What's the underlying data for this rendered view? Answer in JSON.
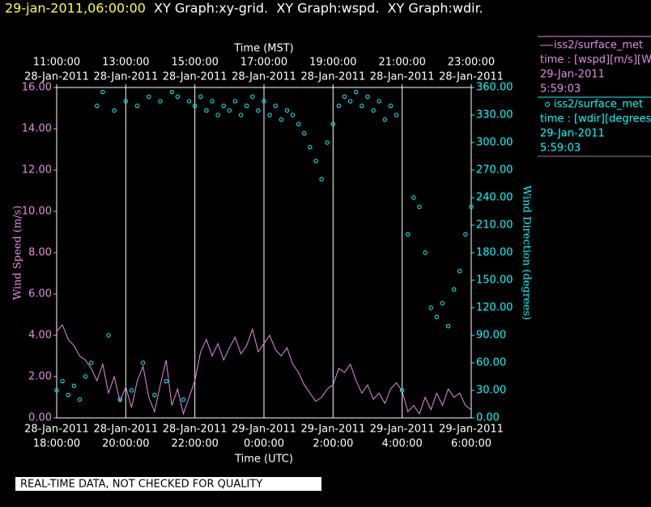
{
  "header": {
    "stamp": "29-jan-2011,06:00:00",
    "title": "XY Graph:xy-grid.  XY Graph:wspd.  XY Graph:wdir."
  },
  "footer": "REAL-TIME DATA, NOT CHECKED FOR QUALITY",
  "legend": [
    {
      "line1": "time : [wspd][m/s][Wind",
      "date": "29-Jan-2011",
      "time": "5:59:03"
    },
    {
      "line1": "time : [wdir][degrees][V",
      "date": "29-Jan-2011",
      "time": "5:59:03"
    }
  ],
  "chart_data": {
    "type": "line",
    "x_label": "Time (UTC)",
    "x2_label": "Time (MST)",
    "y_label": "Wind Speed (m/s)",
    "y2_label": "Wind Direction (degrees)",
    "xlim": [
      "2011-01-28T18:00",
      "2011-01-29T06:00"
    ],
    "xticks": [
      {
        "value": "2011-01-28T18:00",
        "label": [
          "28-Jan-2011",
          "18:00:00"
        ]
      },
      {
        "value": "2011-01-28T20:00",
        "label": [
          "28-Jan-2011",
          "20:00:00"
        ]
      },
      {
        "value": "2011-01-28T22:00",
        "label": [
          "28-Jan-2011",
          "22:00:00"
        ]
      },
      {
        "value": "2011-01-29T00:00",
        "label": [
          "29-Jan-2011",
          "0:00:00"
        ]
      },
      {
        "value": "2011-01-29T02:00",
        "label": [
          "29-Jan-2011",
          "2:00:00"
        ]
      },
      {
        "value": "2011-01-29T04:00",
        "label": [
          "29-Jan-2011",
          "4:00:00"
        ]
      },
      {
        "value": "2011-01-29T06:00",
        "label": [
          "29-Jan-2011",
          "6:00:00"
        ]
      }
    ],
    "x2ticks": [
      {
        "value": "2011-01-28T18:00",
        "label": [
          "11:00:00",
          "28-Jan-2011"
        ]
      },
      {
        "value": "2011-01-28T20:00",
        "label": [
          "13:00:00",
          "28-Jan-2011"
        ]
      },
      {
        "value": "2011-01-28T22:00",
        "label": [
          "15:00:00",
          "28-Jan-2011"
        ]
      },
      {
        "value": "2011-01-29T00:00",
        "label": [
          "17:00:00",
          "28-Jan-2011"
        ]
      },
      {
        "value": "2011-01-29T02:00",
        "label": [
          "19:00:00",
          "28-Jan-2011"
        ]
      },
      {
        "value": "2011-01-29T04:00",
        "label": [
          "21:00:00",
          "28-Jan-2011"
        ]
      },
      {
        "value": "2011-01-29T06:00",
        "label": [
          "23:00:00",
          "28-Jan-2011"
        ]
      }
    ],
    "ylim": [
      0,
      16
    ],
    "yticks": [
      {
        "value": 0,
        "label": "0.00"
      },
      {
        "value": 2,
        "label": "2.00"
      },
      {
        "value": 4,
        "label": "4.00"
      },
      {
        "value": 6,
        "label": "6.00"
      },
      {
        "value": 8,
        "label": "8.00"
      },
      {
        "value": 10,
        "label": "10.00"
      },
      {
        "value": 12,
        "label": "12.00"
      },
      {
        "value": 14,
        "label": "14.00"
      },
      {
        "value": 16,
        "label": "16.00"
      }
    ],
    "y2lim": [
      0,
      360
    ],
    "y2ticks": [
      {
        "value": 0,
        "label": "0.00"
      },
      {
        "value": 30,
        "label": "30.00"
      },
      {
        "value": 60,
        "label": "60.00"
      },
      {
        "value": 90,
        "label": "90.00"
      },
      {
        "value": 120,
        "label": "120.00"
      },
      {
        "value": 150,
        "label": "150.00"
      },
      {
        "value": 180,
        "label": "180.00"
      },
      {
        "value": 210,
        "label": "210.00"
      },
      {
        "value": 240,
        "label": "240.00"
      },
      {
        "value": 270,
        "label": "270.00"
      },
      {
        "value": 300,
        "label": "300.00"
      },
      {
        "value": 330,
        "label": "330.00"
      },
      {
        "value": 360,
        "label": "360.00"
      }
    ],
    "grid": true,
    "x": [
      "2011-01-28T18:00",
      "2011-01-28T18:10",
      "2011-01-28T18:20",
      "2011-01-28T18:30",
      "2011-01-28T18:40",
      "2011-01-28T18:50",
      "2011-01-28T19:00",
      "2011-01-28T19:10",
      "2011-01-28T19:20",
      "2011-01-28T19:30",
      "2011-01-28T19:40",
      "2011-01-28T19:50",
      "2011-01-28T20:00",
      "2011-01-28T20:10",
      "2011-01-28T20:20",
      "2011-01-28T20:30",
      "2011-01-28T20:40",
      "2011-01-28T20:50",
      "2011-01-28T21:00",
      "2011-01-28T21:10",
      "2011-01-28T21:20",
      "2011-01-28T21:30",
      "2011-01-28T21:40",
      "2011-01-28T21:50",
      "2011-01-28T22:00",
      "2011-01-28T22:10",
      "2011-01-28T22:20",
      "2011-01-28T22:30",
      "2011-01-28T22:40",
      "2011-01-28T22:50",
      "2011-01-28T23:00",
      "2011-01-28T23:10",
      "2011-01-28T23:20",
      "2011-01-28T23:30",
      "2011-01-28T23:40",
      "2011-01-28T23:50",
      "2011-01-29T00:00",
      "2011-01-29T00:10",
      "2011-01-29T00:20",
      "2011-01-29T00:30",
      "2011-01-29T00:40",
      "2011-01-29T00:50",
      "2011-01-29T01:00",
      "2011-01-29T01:10",
      "2011-01-29T01:20",
      "2011-01-29T01:30",
      "2011-01-29T01:40",
      "2011-01-29T01:50",
      "2011-01-29T02:00",
      "2011-01-29T02:10",
      "2011-01-29T02:20",
      "2011-01-29T02:30",
      "2011-01-29T02:40",
      "2011-01-29T02:50",
      "2011-01-29T03:00",
      "2011-01-29T03:10",
      "2011-01-29T03:20",
      "2011-01-29T03:30",
      "2011-01-29T03:40",
      "2011-01-29T03:50",
      "2011-01-29T04:00",
      "2011-01-29T04:10",
      "2011-01-29T04:20",
      "2011-01-29T04:30",
      "2011-01-29T04:40",
      "2011-01-29T04:50",
      "2011-01-29T05:00",
      "2011-01-29T05:10",
      "2011-01-29T05:20",
      "2011-01-29T05:30",
      "2011-01-29T05:40",
      "2011-01-29T05:50",
      "2011-01-29T06:00"
    ],
    "series": [
      {
        "name": "iss2/surface_met",
        "color": "#e48ce4",
        "style": "line",
        "values": [
          4.2,
          4.5,
          3.8,
          3.5,
          3.0,
          2.8,
          2.4,
          1.8,
          2.6,
          1.2,
          2.0,
          0.8,
          1.5,
          0.5,
          1.8,
          2.5,
          1.0,
          0.3,
          1.6,
          2.8,
          0.6,
          1.4,
          0.2,
          1.0,
          1.8,
          3.2,
          3.8,
          3.0,
          3.6,
          2.8,
          3.4,
          3.9,
          3.1,
          3.5,
          4.3,
          3.2,
          3.6,
          4.0,
          3.3,
          3.0,
          3.4,
          2.6,
          2.2,
          1.6,
          1.2,
          0.8,
          1.0,
          1.4,
          1.6,
          2.4,
          2.2,
          2.6,
          1.8,
          1.2,
          1.6,
          0.9,
          1.2,
          0.7,
          1.4,
          1.7,
          1.3,
          0.3,
          0.6,
          0.2,
          1.0,
          0.4,
          1.2,
          0.6,
          1.4,
          1.0,
          1.2,
          0.6,
          0.4
        ]
      },
      {
        "name": "iss2/surface_met",
        "color": "#00ffff",
        "style": "scatter",
        "axis": "y2",
        "values": [
          30,
          40,
          25,
          35,
          20,
          45,
          60,
          340,
          355,
          90,
          335,
          20,
          345,
          30,
          340,
          60,
          350,
          25,
          345,
          40,
          355,
          350,
          20,
          345,
          340,
          350,
          335,
          345,
          330,
          340,
          335,
          345,
          330,
          340,
          350,
          335,
          345,
          330,
          340,
          325,
          335,
          330,
          320,
          310,
          295,
          280,
          260,
          300,
          320,
          340,
          350,
          345,
          355,
          340,
          350,
          335,
          345,
          325,
          340,
          330,
          30,
          200,
          240,
          230,
          180,
          120,
          110,
          125,
          100,
          140,
          160,
          200,
          230
        ]
      }
    ]
  }
}
